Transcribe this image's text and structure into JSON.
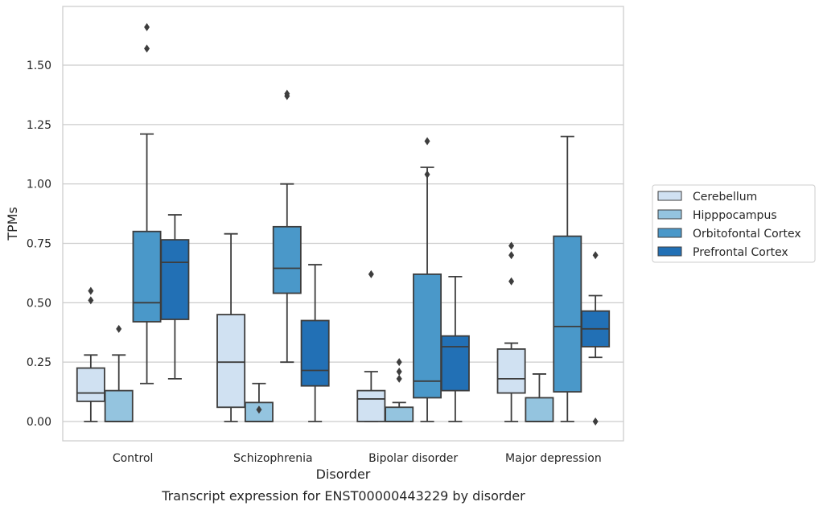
{
  "caption": "Transcript expression for ENST00000443229 by disorder",
  "chart_data": {
    "type": "box",
    "title": "",
    "xlabel": "Disorder",
    "ylabel": "TPMs",
    "ylim": [
      -0.08,
      1.75
    ],
    "yticks": [
      0.0,
      0.25,
      0.5,
      0.75,
      1.0,
      1.25,
      1.5
    ],
    "ytick_labels": [
      "0.00",
      "0.25",
      "0.50",
      "0.75",
      "1.00",
      "1.25",
      "1.50"
    ],
    "grid": "horizontal",
    "legend_position": "right",
    "categories": [
      "Control",
      "Schizophrenia",
      "Bipolar disorder",
      "Major depression"
    ],
    "series": [
      {
        "name": "Cerebellum",
        "color": "#d0e1f2",
        "boxes": [
          {
            "q1": 0.085,
            "median": 0.12,
            "q3": 0.225,
            "whisker_low": 0.0,
            "whisker_high": 0.28,
            "outliers": [
              0.51,
              0.55
            ]
          },
          {
            "q1": 0.06,
            "median": 0.25,
            "q3": 0.45,
            "whisker_low": 0.0,
            "whisker_high": 0.79,
            "outliers": []
          },
          {
            "q1": 0.0,
            "median": 0.095,
            "q3": 0.13,
            "whisker_low": 0.0,
            "whisker_high": 0.21,
            "outliers": [
              0.62
            ]
          },
          {
            "q1": 0.12,
            "median": 0.18,
            "q3": 0.305,
            "whisker_low": 0.0,
            "whisker_high": 0.33,
            "outliers": [
              0.59,
              0.7,
              0.74
            ]
          }
        ]
      },
      {
        "name": "Hipppocampus",
        "color": "#94c4df",
        "boxes": [
          {
            "q1": 0.0,
            "median": 0.0,
            "q3": 0.13,
            "whisker_low": 0.0,
            "whisker_high": 0.28,
            "outliers": [
              0.39
            ]
          },
          {
            "q1": 0.0,
            "median": 0.0,
            "q3": 0.08,
            "whisker_low": 0.0,
            "whisker_high": 0.16,
            "outliers": [
              0.05
            ]
          },
          {
            "q1": 0.0,
            "median": 0.0,
            "q3": 0.06,
            "whisker_low": 0.0,
            "whisker_high": 0.08,
            "outliers": [
              0.18,
              0.21,
              0.25
            ]
          },
          {
            "q1": 0.0,
            "median": 0.0,
            "q3": 0.1,
            "whisker_low": 0.0,
            "whisker_high": 0.2,
            "outliers": []
          }
        ]
      },
      {
        "name": "Orbitofontal Cortex",
        "color": "#4a98c9",
        "boxes": [
          {
            "q1": 0.42,
            "median": 0.5,
            "q3": 0.8,
            "whisker_low": 0.16,
            "whisker_high": 1.21,
            "outliers": [
              1.57,
              1.66
            ]
          },
          {
            "q1": 0.54,
            "median": 0.645,
            "q3": 0.82,
            "whisker_low": 0.25,
            "whisker_high": 1.0,
            "outliers": [
              1.37,
              1.38
            ]
          },
          {
            "q1": 0.1,
            "median": 0.17,
            "q3": 0.62,
            "whisker_low": 0.0,
            "whisker_high": 1.07,
            "outliers": [
              1.04,
              1.18
            ]
          },
          {
            "q1": 0.125,
            "median": 0.4,
            "q3": 0.78,
            "whisker_low": 0.0,
            "whisker_high": 1.2,
            "outliers": []
          }
        ]
      },
      {
        "name": "Prefrontal Cortex",
        "color": "#2270b5",
        "boxes": [
          {
            "q1": 0.43,
            "median": 0.67,
            "q3": 0.765,
            "whisker_low": 0.18,
            "whisker_high": 0.87,
            "outliers": []
          },
          {
            "q1": 0.15,
            "median": 0.215,
            "q3": 0.425,
            "whisker_low": 0.0,
            "whisker_high": 0.66,
            "outliers": []
          },
          {
            "q1": 0.13,
            "median": 0.315,
            "q3": 0.36,
            "whisker_low": 0.0,
            "whisker_high": 0.61,
            "outliers": []
          },
          {
            "q1": 0.315,
            "median": 0.39,
            "q3": 0.465,
            "whisker_low": 0.27,
            "whisker_high": 0.53,
            "outliers": [
              0.0,
              0.7
            ]
          }
        ]
      }
    ]
  }
}
